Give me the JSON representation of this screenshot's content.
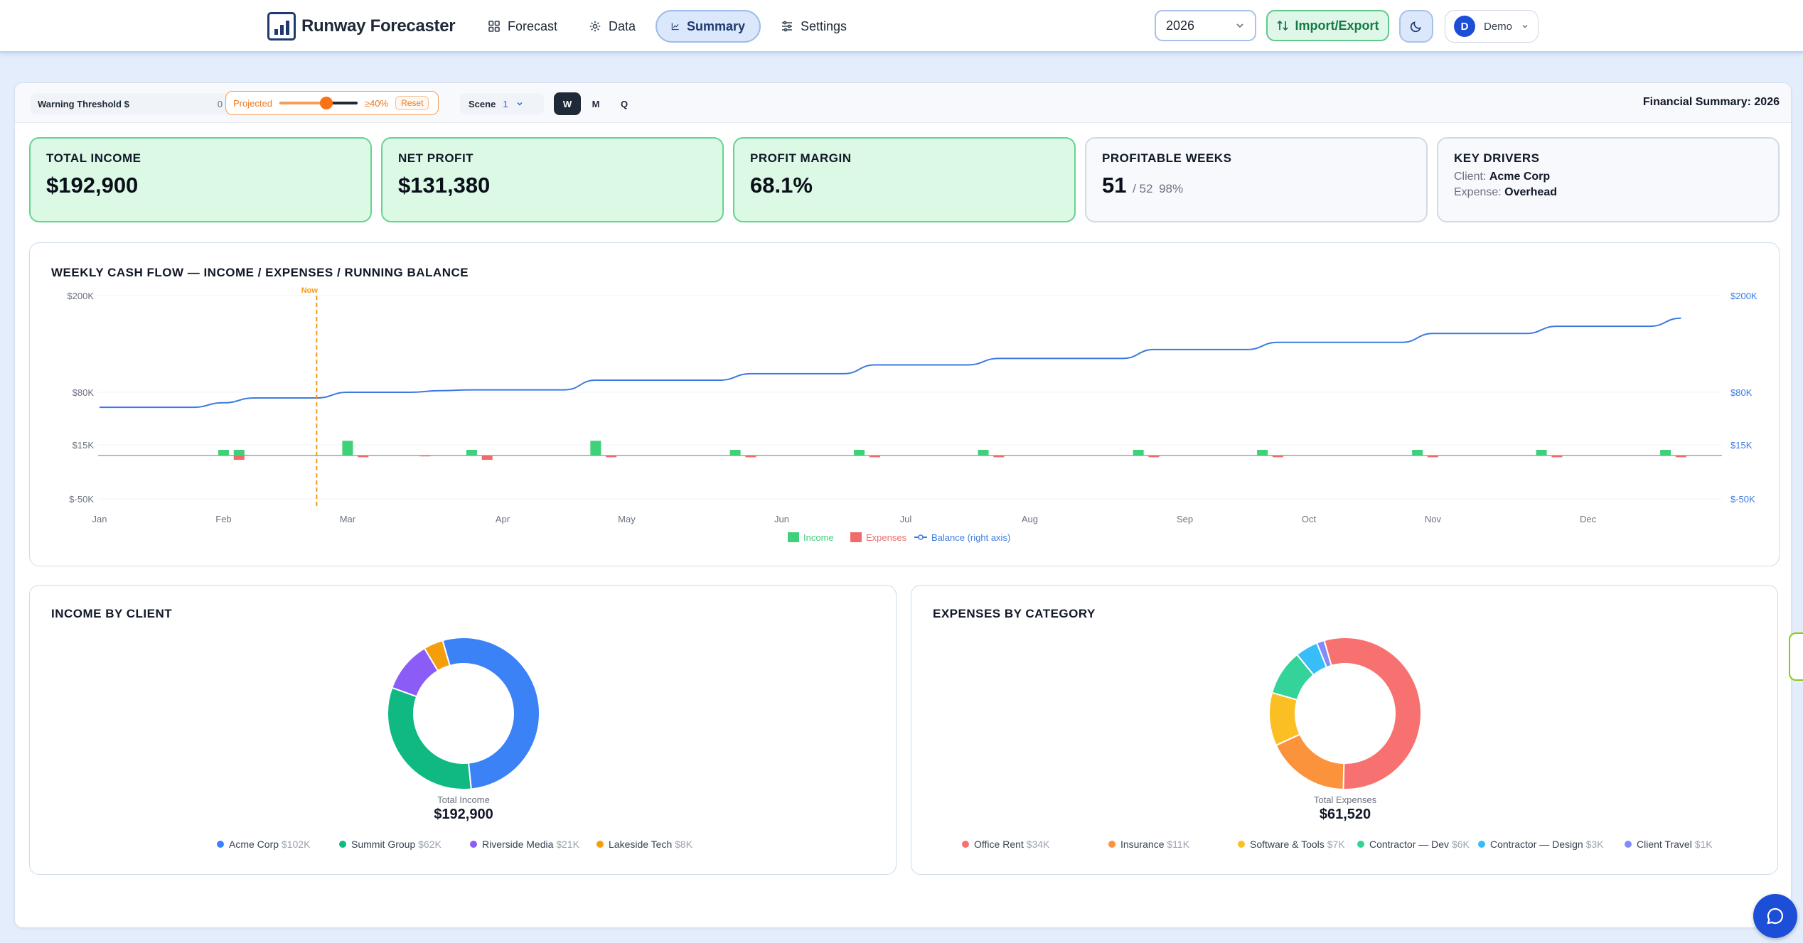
{
  "app": {
    "title": "Runway Forecaster"
  },
  "nav": {
    "tabs": [
      {
        "label": "Forecast",
        "icon": "grid-icon"
      },
      {
        "label": "Data",
        "icon": "gear-icon"
      },
      {
        "label": "Summary",
        "icon": "chart-icon",
        "active": true
      },
      {
        "label": "Settings",
        "icon": "sliders-icon"
      }
    ],
    "year": "2026",
    "import_export": "Import/Export",
    "user": {
      "initial": "D",
      "name": "Demo"
    }
  },
  "toolbar": {
    "threshold_label": "Warning Threshold $",
    "threshold_value": "0",
    "projected_label": "Projected",
    "projected_pct_label": "≥40%",
    "projected_level": 0.6,
    "reset_label": "Reset",
    "scene_label": "Scene",
    "scene_value": "1",
    "granularity": [
      "W",
      "M",
      "Q"
    ],
    "granularity_selected": "W",
    "summary_title": "Financial Summary: 2026"
  },
  "kpis": {
    "total_income": {
      "label": "TOTAL INCOME",
      "value": "$192,900"
    },
    "net_profit": {
      "label": "NET PROFIT",
      "value": "$131,380"
    },
    "profit_margin": {
      "label": "PROFIT MARGIN",
      "value": "68.1%"
    },
    "profitable_weeks": {
      "label": "PROFITABLE WEEKS",
      "value": "51",
      "total": "/ 52",
      "pct": "98%"
    },
    "key_drivers": {
      "label": "KEY DRIVERS",
      "client_label": "Client:",
      "client": "Acme Corp",
      "expense_label": "Expense:",
      "expense": "Overhead"
    }
  },
  "colors": {
    "income": "#3fd07a",
    "expenses": "#f16b6b",
    "balance": "#3b7be0",
    "now_marker": "#f29a1a"
  },
  "chart_data": [
    {
      "type": "bar+line",
      "title": "WEEKLY CASH FLOW — INCOME / EXPENSES / RUNNING BALANCE",
      "x_ticks": [
        "Jan",
        "Feb",
        "Mar",
        "Apr",
        "May",
        "Jun",
        "Jul",
        "Aug",
        "Sep",
        "Oct",
        "Nov",
        "Dec"
      ],
      "y_ticks_left": [
        "$200K",
        "$80K",
        "$15K",
        "$-50K"
      ],
      "y_ticks_right": [
        "$200K",
        "$80K",
        "$15K",
        "$-50K"
      ],
      "y_scale": "symlog",
      "now_label": "Now",
      "now_week": 14,
      "legend": [
        "Income",
        "Expenses",
        "Balance (right axis)"
      ],
      "series": [
        {
          "name": "Income",
          "weeks": [
            8,
            9,
            16,
            24,
            32,
            41,
            49,
            57,
            67,
            75,
            85,
            93,
            101
          ],
          "values": [
            8000,
            8000,
            20000,
            8000,
            20000,
            8000,
            8000,
            8000,
            8000,
            8000,
            8000,
            8000,
            8000
          ]
        },
        {
          "name": "Expenses",
          "weeks": [
            9,
            17,
            21,
            25,
            33,
            42,
            50,
            58,
            68,
            76,
            86,
            94,
            102
          ],
          "values": [
            -5000,
            -2000,
            -1000,
            -5000,
            -2000,
            -2000,
            -2000,
            -2000,
            -2000,
            -2000,
            -2000,
            -2000,
            -2000
          ]
        },
        {
          "name": "Balance (right axis)",
          "weeks": [
            0,
            6,
            8,
            10,
            14,
            16,
            20,
            22,
            24,
            30,
            32,
            40,
            42,
            48,
            50,
            56,
            58,
            66,
            68,
            74,
            76,
            84,
            86,
            92,
            94,
            100,
            102
          ],
          "values": [
            61400,
            61400,
            67000,
            73000,
            73000,
            80000,
            80000,
            82000,
            83000,
            83000,
            95000,
            95000,
            103000,
            103000,
            114000,
            114000,
            122000,
            122000,
            133000,
            133000,
            142000,
            142000,
            153000,
            153000,
            162000,
            162000,
            172000
          ]
        }
      ]
    },
    {
      "type": "pie",
      "title": "INCOME BY CLIENT",
      "center_label": "Total Income",
      "center_value": "$192,900",
      "slices": [
        {
          "name": "Acme Corp",
          "label": "$102K",
          "value": 102,
          "color": "#3b82f6"
        },
        {
          "name": "Summit Group",
          "label": "$62K",
          "value": 62,
          "color": "#10b981"
        },
        {
          "name": "Riverside Media",
          "label": "$21K",
          "value": 21,
          "color": "#8b5cf6"
        },
        {
          "name": "Lakeside Tech",
          "label": "$8K",
          "value": 8,
          "color": "#f59e0b"
        }
      ]
    },
    {
      "type": "pie",
      "title": "EXPENSES BY CATEGORY",
      "center_label": "Total Expenses",
      "center_value": "$61,520",
      "slices": [
        {
          "name": "Office Rent",
          "label": "$34K",
          "value": 34,
          "color": "#f87171"
        },
        {
          "name": "Insurance",
          "label": "$11K",
          "value": 11,
          "color": "#fb923c"
        },
        {
          "name": "Software & Tools",
          "label": "$7K",
          "value": 7,
          "color": "#fbbf24"
        },
        {
          "name": "Contractor — Dev",
          "label": "$6K",
          "value": 6,
          "color": "#34d399"
        },
        {
          "name": "Contractor — Design",
          "label": "$3K",
          "value": 3,
          "color": "#38bdf8"
        },
        {
          "name": "Client Travel",
          "label": "$1K",
          "value": 1,
          "color": "#818cf8"
        }
      ]
    }
  ]
}
